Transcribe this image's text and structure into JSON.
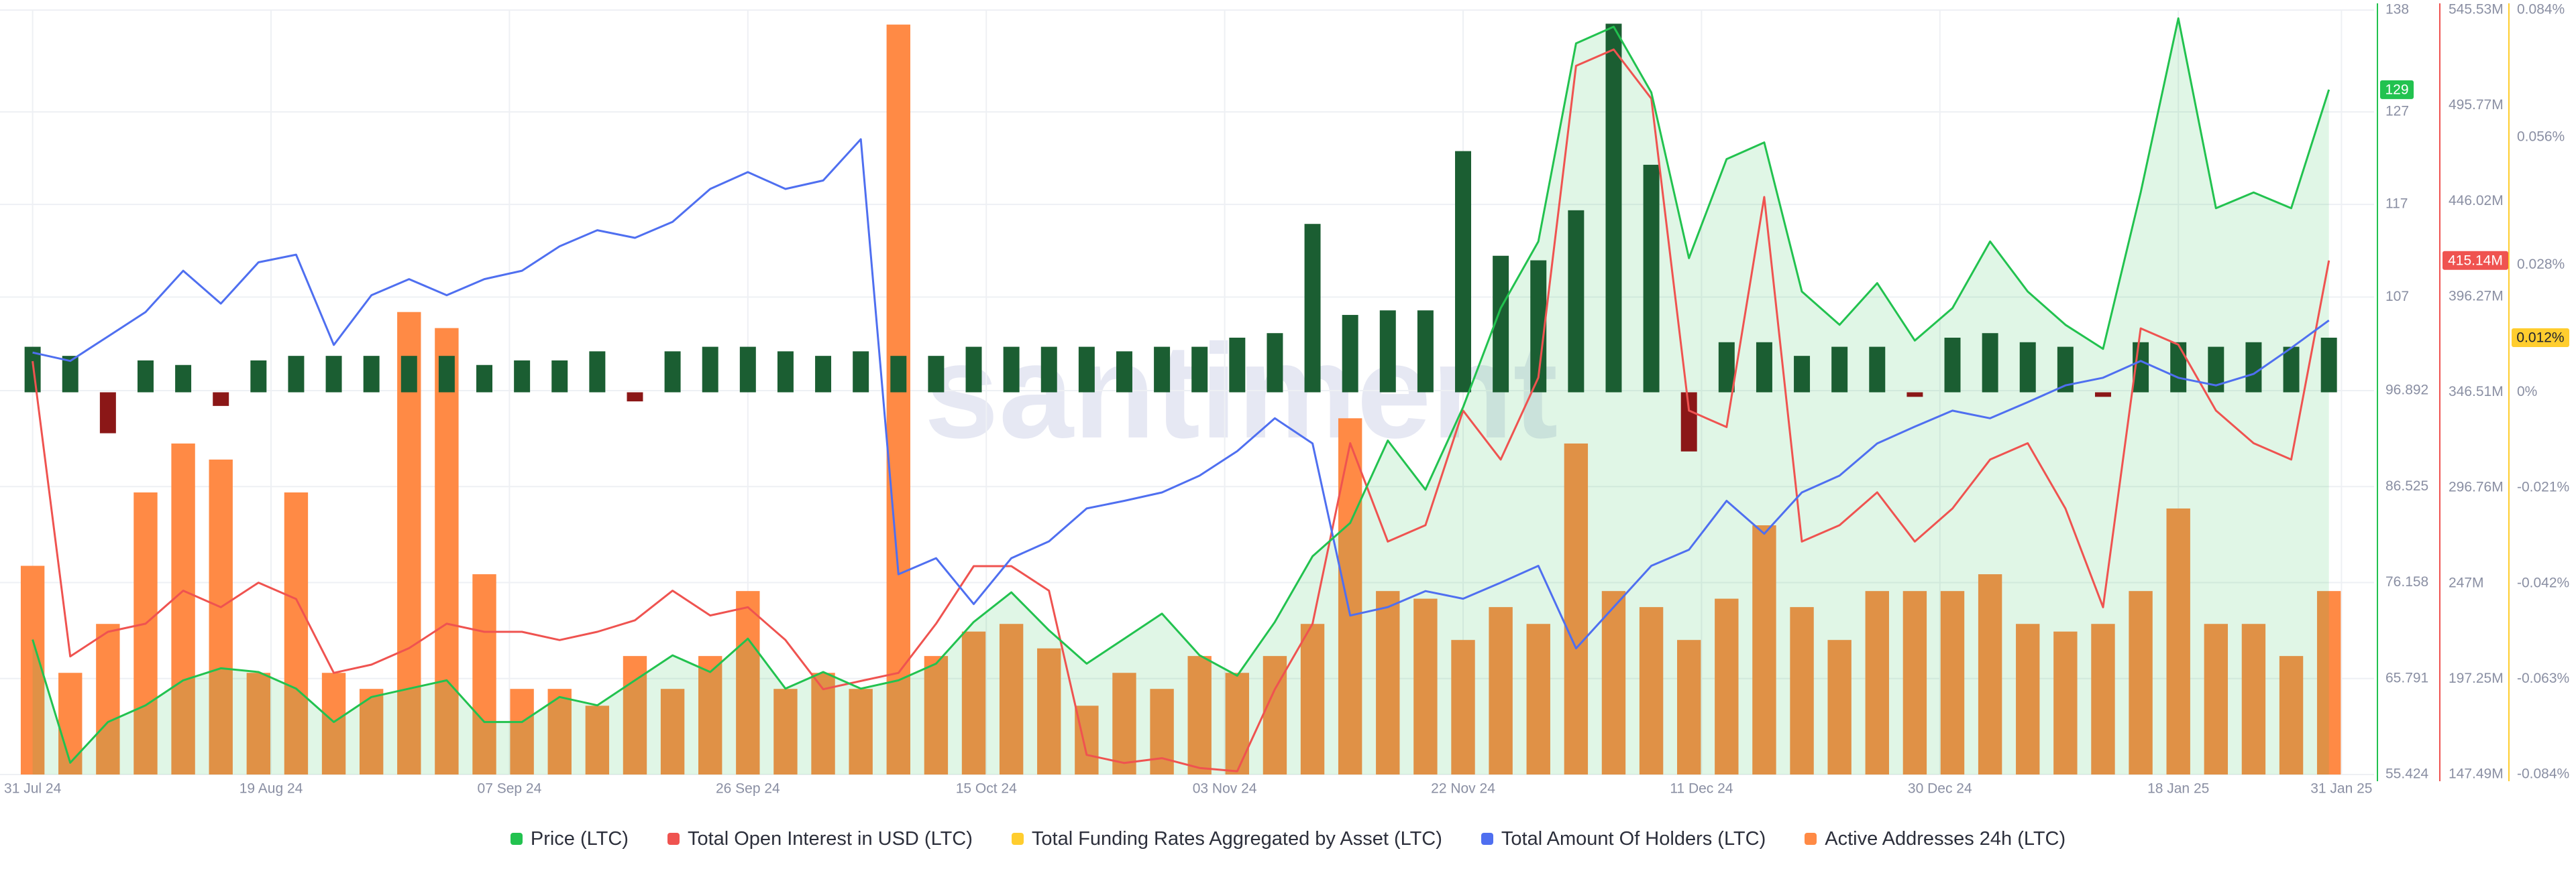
{
  "chart_data": {
    "type": "combo",
    "watermark": "santiment",
    "x": [
      0,
      3,
      6,
      9,
      12,
      15,
      18,
      21,
      24,
      27,
      30,
      33,
      36,
      39,
      42,
      45,
      48,
      51,
      54,
      57,
      60,
      63,
      66,
      69,
      72,
      75,
      78,
      81,
      84,
      87,
      90,
      93,
      96,
      99,
      102,
      105,
      108,
      111,
      114,
      117,
      120,
      123,
      126,
      129,
      132,
      135,
      138,
      141,
      144,
      147,
      150,
      153,
      156,
      159,
      162,
      165,
      168,
      171,
      174,
      177,
      180,
      183
    ],
    "xlim": [
      -2.6,
      186.6
    ],
    "xticks": [
      {
        "value": 0,
        "label": "31 Jul 24"
      },
      {
        "value": 19,
        "label": "19 Aug 24"
      },
      {
        "value": 38,
        "label": "07 Sep 24"
      },
      {
        "value": 57,
        "label": "26 Sep 24"
      },
      {
        "value": 76,
        "label": "15 Oct 24"
      },
      {
        "value": 95,
        "label": "03 Nov 24"
      },
      {
        "value": 114,
        "label": "22 Nov 24"
      },
      {
        "value": 133,
        "label": "11 Dec 24"
      },
      {
        "value": 152,
        "label": "30 Dec 24"
      },
      {
        "value": 171,
        "label": "18 Jan 25"
      },
      {
        "value": 184,
        "label": "31 Jan 25"
      }
    ],
    "ylim": [
      55.424,
      138
    ],
    "yticks": [
      138,
      127,
      117,
      107,
      96.892,
      86.525,
      76.158,
      65.791,
      55.424
    ],
    "y2lim": [
      147.49,
      545.53
    ],
    "y2ticks": [
      {
        "value": 545.53,
        "label": "545.53M"
      },
      {
        "value": 495.77,
        "label": "495.77M"
      },
      {
        "value": 446.02,
        "label": "446.02M"
      },
      {
        "value": 396.27,
        "label": "396.27M"
      },
      {
        "value": 346.51,
        "label": "346.51M"
      },
      {
        "value": 296.76,
        "label": "296.76M"
      },
      {
        "value": 247,
        "label": "247M"
      },
      {
        "value": 197.25,
        "label": "197.25M"
      },
      {
        "value": 147.49,
        "label": "147.49M"
      }
    ],
    "y3lim": [
      -0.084,
      0.084
    ],
    "y3ticks": [
      {
        "value": 0.084,
        "label": "0.084%"
      },
      {
        "value": 0.056,
        "label": "0.056%"
      },
      {
        "value": 0.028,
        "label": "0.028%"
      },
      {
        "value": 0,
        "label": "0%"
      },
      {
        "value": -0.021,
        "label": "-0.021%"
      },
      {
        "value": -0.042,
        "label": "-0.042%"
      },
      {
        "value": -0.063,
        "label": "-0.063%"
      },
      {
        "value": -0.084,
        "label": "-0.084%"
      }
    ],
    "y4lim": [
      0,
      100
    ],
    "y5lim": [
      0,
      100
    ],
    "grid": true,
    "legend": "bottom",
    "series": [
      {
        "name": "Price (LTC)",
        "type": "line",
        "area": true,
        "axis": "y",
        "color": "#22c24f",
        "current_label": "129",
        "values": [
          70,
          56.7,
          61.1,
          62.9,
          65.6,
          66.9,
          66.5,
          64.7,
          61.1,
          63.8,
          64.7,
          65.6,
          61.1,
          61.1,
          63.8,
          62.9,
          65.6,
          68.3,
          66.5,
          70.1,
          64.7,
          66.5,
          64.7,
          65.6,
          67.4,
          71.9,
          75.1,
          71,
          67.4,
          70.1,
          72.8,
          68.3,
          66.1,
          71.9,
          79,
          82.6,
          91.5,
          86.2,
          95.1,
          105.8,
          113,
          134.4,
          136.2,
          129.1,
          111.2,
          121.9,
          123.7,
          107.6,
          104,
          108.5,
          102.3,
          105.8,
          113,
          107.6,
          104,
          101.4,
          118.3,
          137.1,
          116.6,
          118.3,
          116.6,
          129.4
        ]
      },
      {
        "name": "Total Open Interest in USD (LTC)",
        "type": "line",
        "axis": "y2",
        "color": "#ef5350",
        "current_label": "415.14M",
        "values": [
          362.7,
          209,
          221.8,
          226,
          243.2,
          234.6,
          247.4,
          238.9,
          200.4,
          204.7,
          213.3,
          226,
          221.8,
          221.8,
          217.5,
          221.8,
          227.8,
          243.2,
          230.3,
          234.6,
          217.5,
          191.9,
          196.2,
          200.4,
          226,
          256,
          256,
          243.2,
          157.7,
          153.5,
          156,
          150.9,
          149.2,
          191.9,
          226,
          320,
          268.8,
          277.3,
          337,
          311.5,
          354.2,
          516.5,
          525,
          499.4,
          337,
          328.4,
          448.2,
          268.8,
          277.3,
          294.4,
          268.8,
          286,
          311.5,
          320,
          286,
          234.6,
          379.8,
          371.3,
          337,
          320,
          311.5,
          415.14
        ]
      },
      {
        "name": "Total Funding Rates Aggregated by Asset (LTC)",
        "type": "bar",
        "axis": "y3",
        "color": "#ffcd2e",
        "bar_color": "#1b5e32",
        "negative_color": "#8b1717",
        "current_label": "0.012%",
        "values": [
          0.01,
          0.008,
          -0.009,
          0.007,
          0.006,
          -0.003,
          0.007,
          0.008,
          0.008,
          0.008,
          0.008,
          0.008,
          0.006,
          0.007,
          0.007,
          0.009,
          -0.002,
          0.009,
          0.01,
          0.01,
          0.009,
          0.008,
          0.009,
          0.008,
          0.008,
          0.01,
          0.01,
          0.01,
          0.01,
          0.009,
          0.01,
          0.01,
          0.012,
          0.013,
          0.037,
          0.017,
          0.018,
          0.018,
          0.053,
          0.03,
          0.029,
          0.04,
          0.081,
          0.05,
          -0.013,
          0.011,
          0.011,
          0.008,
          0.01,
          0.01,
          -0.001,
          0.012,
          0.013,
          0.011,
          0.01,
          -0.001,
          0.011,
          0.011,
          0.01,
          0.011,
          0.01,
          0.012
        ]
      },
      {
        "name": "Total Amount Of Holders (LTC)",
        "type": "line",
        "axis": "y4",
        "color": "#4f6ff0",
        "values": [
          55.2,
          54.1,
          57.3,
          60.5,
          65.9,
          61.6,
          67,
          68,
          56.2,
          62.7,
          64.8,
          62.7,
          64.8,
          65.9,
          69.1,
          71.2,
          70.2,
          72.3,
          76.6,
          78.8,
          76.6,
          77.7,
          83.1,
          26.2,
          28.3,
          22.3,
          28.3,
          30.5,
          34.8,
          35.8,
          36.9,
          39.1,
          42.3,
          46.6,
          43.3,
          20.8,
          21.9,
          24,
          23,
          25.1,
          27.3,
          16.5,
          21.9,
          27.3,
          29.4,
          35.8,
          31.5,
          36.9,
          39.1,
          43.3,
          45.5,
          47.6,
          46.6,
          48.7,
          50.9,
          51.9,
          54.1,
          51.9,
          50.9,
          52.4,
          55.8,
          59.4
        ]
      },
      {
        "name": "Active Addresses 24h (LTC)",
        "type": "bar",
        "axis": "y5",
        "color": "#ff8a45",
        "values": [
          27.3,
          13.3,
          19.7,
          36.9,
          43.3,
          41.2,
          13.3,
          36.9,
          13.3,
          11.2,
          60.5,
          58.4,
          26.2,
          11.2,
          11.2,
          9,
          15.5,
          11.2,
          15.5,
          24,
          11.2,
          13.3,
          11.2,
          98.1,
          15.5,
          18.7,
          19.7,
          16.5,
          9,
          13.3,
          11.2,
          15.5,
          13.3,
          15.5,
          19.7,
          46.6,
          24,
          23,
          17.6,
          21.9,
          19.7,
          43.3,
          24,
          21.9,
          17.6,
          23,
          32.6,
          21.9,
          17.6,
          24,
          24,
          24,
          26.2,
          19.7,
          18.7,
          19.7,
          24,
          34.8,
          19.7,
          19.7,
          15.5,
          24
        ]
      }
    ]
  }
}
